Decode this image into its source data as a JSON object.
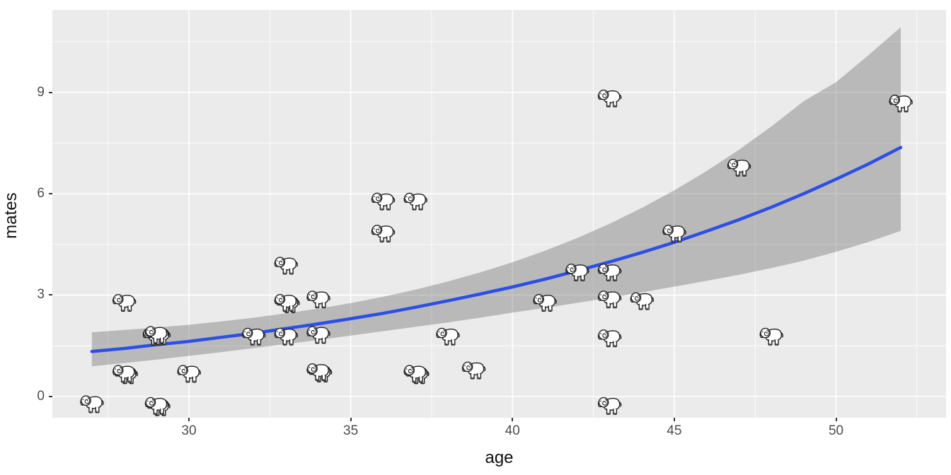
{
  "figure": {
    "kind": "ggplot-style scatter plot with emoji point glyphs and GLM smooth",
    "background": "#ffffff"
  },
  "chart_data": {
    "type": "scatter",
    "title": "",
    "xlabel": "age",
    "ylabel": "mates",
    "point_glyph": "elephant-emoji-outline",
    "legend": "none",
    "grid": "major+minor white on gray panel",
    "x_domain": [
      25.78,
      53.4
    ],
    "y_domain": [
      -0.63,
      11.44
    ],
    "x_ticks_major": [
      30,
      35,
      40,
      45,
      50
    ],
    "x_tick_labels": [
      "30",
      "35",
      "40",
      "45",
      "50"
    ],
    "x_ticks_minor": [
      27.5,
      32.5,
      37.5,
      42.5,
      47.5,
      52.5
    ],
    "y_ticks_major": [
      0,
      3,
      6,
      9
    ],
    "y_tick_labels": [
      "0",
      "3",
      "6",
      "9"
    ],
    "y_ticks_minor": [
      1.5,
      4.5,
      7.5,
      10.5
    ],
    "points": [
      {
        "age": 27.0,
        "mates": -0.2,
        "count": 1
      },
      {
        "age": 29.0,
        "mates": -0.25,
        "count": 2
      },
      {
        "age": 43.0,
        "mates": -0.25,
        "count": 1
      },
      {
        "age": 28.0,
        "mates": 0.7,
        "count": 2
      },
      {
        "age": 30.0,
        "mates": 0.7,
        "count": 1
      },
      {
        "age": 34.0,
        "mates": 0.75,
        "count": 2
      },
      {
        "age": 37.0,
        "mates": 0.7,
        "count": 2
      },
      {
        "age": 38.8,
        "mates": 0.8,
        "count": 1
      },
      {
        "age": 29.0,
        "mates": 1.85,
        "count": 3
      },
      {
        "age": 32.0,
        "mates": 1.8,
        "count": 1
      },
      {
        "age": 33.0,
        "mates": 1.8,
        "count": 1
      },
      {
        "age": 34.0,
        "mates": 1.85,
        "count": 1
      },
      {
        "age": 38.0,
        "mates": 1.8,
        "count": 1
      },
      {
        "age": 43.0,
        "mates": 1.75,
        "count": 1
      },
      {
        "age": 48.0,
        "mates": 1.8,
        "count": 1
      },
      {
        "age": 28.0,
        "mates": 2.8,
        "count": 1
      },
      {
        "age": 33.0,
        "mates": 2.8,
        "count": 2
      },
      {
        "age": 34.0,
        "mates": 2.9,
        "count": 1
      },
      {
        "age": 41.0,
        "mates": 2.8,
        "count": 1
      },
      {
        "age": 43.0,
        "mates": 2.9,
        "count": 1
      },
      {
        "age": 44.0,
        "mates": 2.85,
        "count": 1
      },
      {
        "age": 33.0,
        "mates": 3.9,
        "count": 1
      },
      {
        "age": 42.0,
        "mates": 3.7,
        "count": 1
      },
      {
        "age": 43.0,
        "mates": 3.7,
        "count": 1
      },
      {
        "age": 36.0,
        "mates": 4.85,
        "count": 1
      },
      {
        "age": 45.0,
        "mates": 4.85,
        "count": 1
      },
      {
        "age": 36.0,
        "mates": 5.8,
        "count": 1
      },
      {
        "age": 37.0,
        "mates": 5.8,
        "count": 1
      },
      {
        "age": 47.0,
        "mates": 6.8,
        "count": 1
      },
      {
        "age": 43.0,
        "mates": 8.85,
        "count": 1
      },
      {
        "age": 52.0,
        "mates": 8.7,
        "count": 1
      }
    ],
    "smooth": {
      "x": [
        27,
        28,
        29,
        30,
        31,
        32,
        33,
        34,
        35,
        36,
        37,
        38,
        39,
        40,
        41,
        42,
        43,
        44,
        45,
        46,
        47,
        48,
        49,
        50,
        51,
        52
      ],
      "fit": [
        1.33,
        1.42,
        1.53,
        1.63,
        1.75,
        1.87,
        2.01,
        2.15,
        2.3,
        2.46,
        2.64,
        2.83,
        3.03,
        3.24,
        3.47,
        3.72,
        3.98,
        4.26,
        4.56,
        4.89,
        5.23,
        5.6,
        6.0,
        6.43,
        6.88,
        7.37
      ],
      "lower": [
        0.89,
        0.99,
        1.09,
        1.2,
        1.31,
        1.43,
        1.55,
        1.67,
        1.8,
        1.93,
        2.06,
        2.19,
        2.33,
        2.48,
        2.62,
        2.77,
        2.92,
        3.08,
        3.25,
        3.42,
        3.6,
        3.8,
        4.02,
        4.28,
        4.57,
        4.9
      ],
      "upper": [
        1.9,
        1.97,
        2.04,
        2.12,
        2.22,
        2.33,
        2.46,
        2.6,
        2.76,
        2.95,
        3.16,
        3.4,
        3.67,
        3.97,
        4.31,
        4.69,
        5.11,
        5.58,
        6.1,
        6.67,
        7.3,
        7.99,
        8.74,
        9.3,
        10.1,
        10.93
      ]
    },
    "colors": {
      "panel_bg": "#EBEBEB",
      "grid": "#FFFFFF",
      "smooth_line": "#2C4FE4",
      "ribbon": "rgba(105,105,105,0.38)",
      "tick_label": "#4D4D4D",
      "axis_title": "#111111",
      "tick_mark": "#333333",
      "glyph_stroke": "#222222",
      "glyph_fill": "#FFFFFF"
    }
  }
}
